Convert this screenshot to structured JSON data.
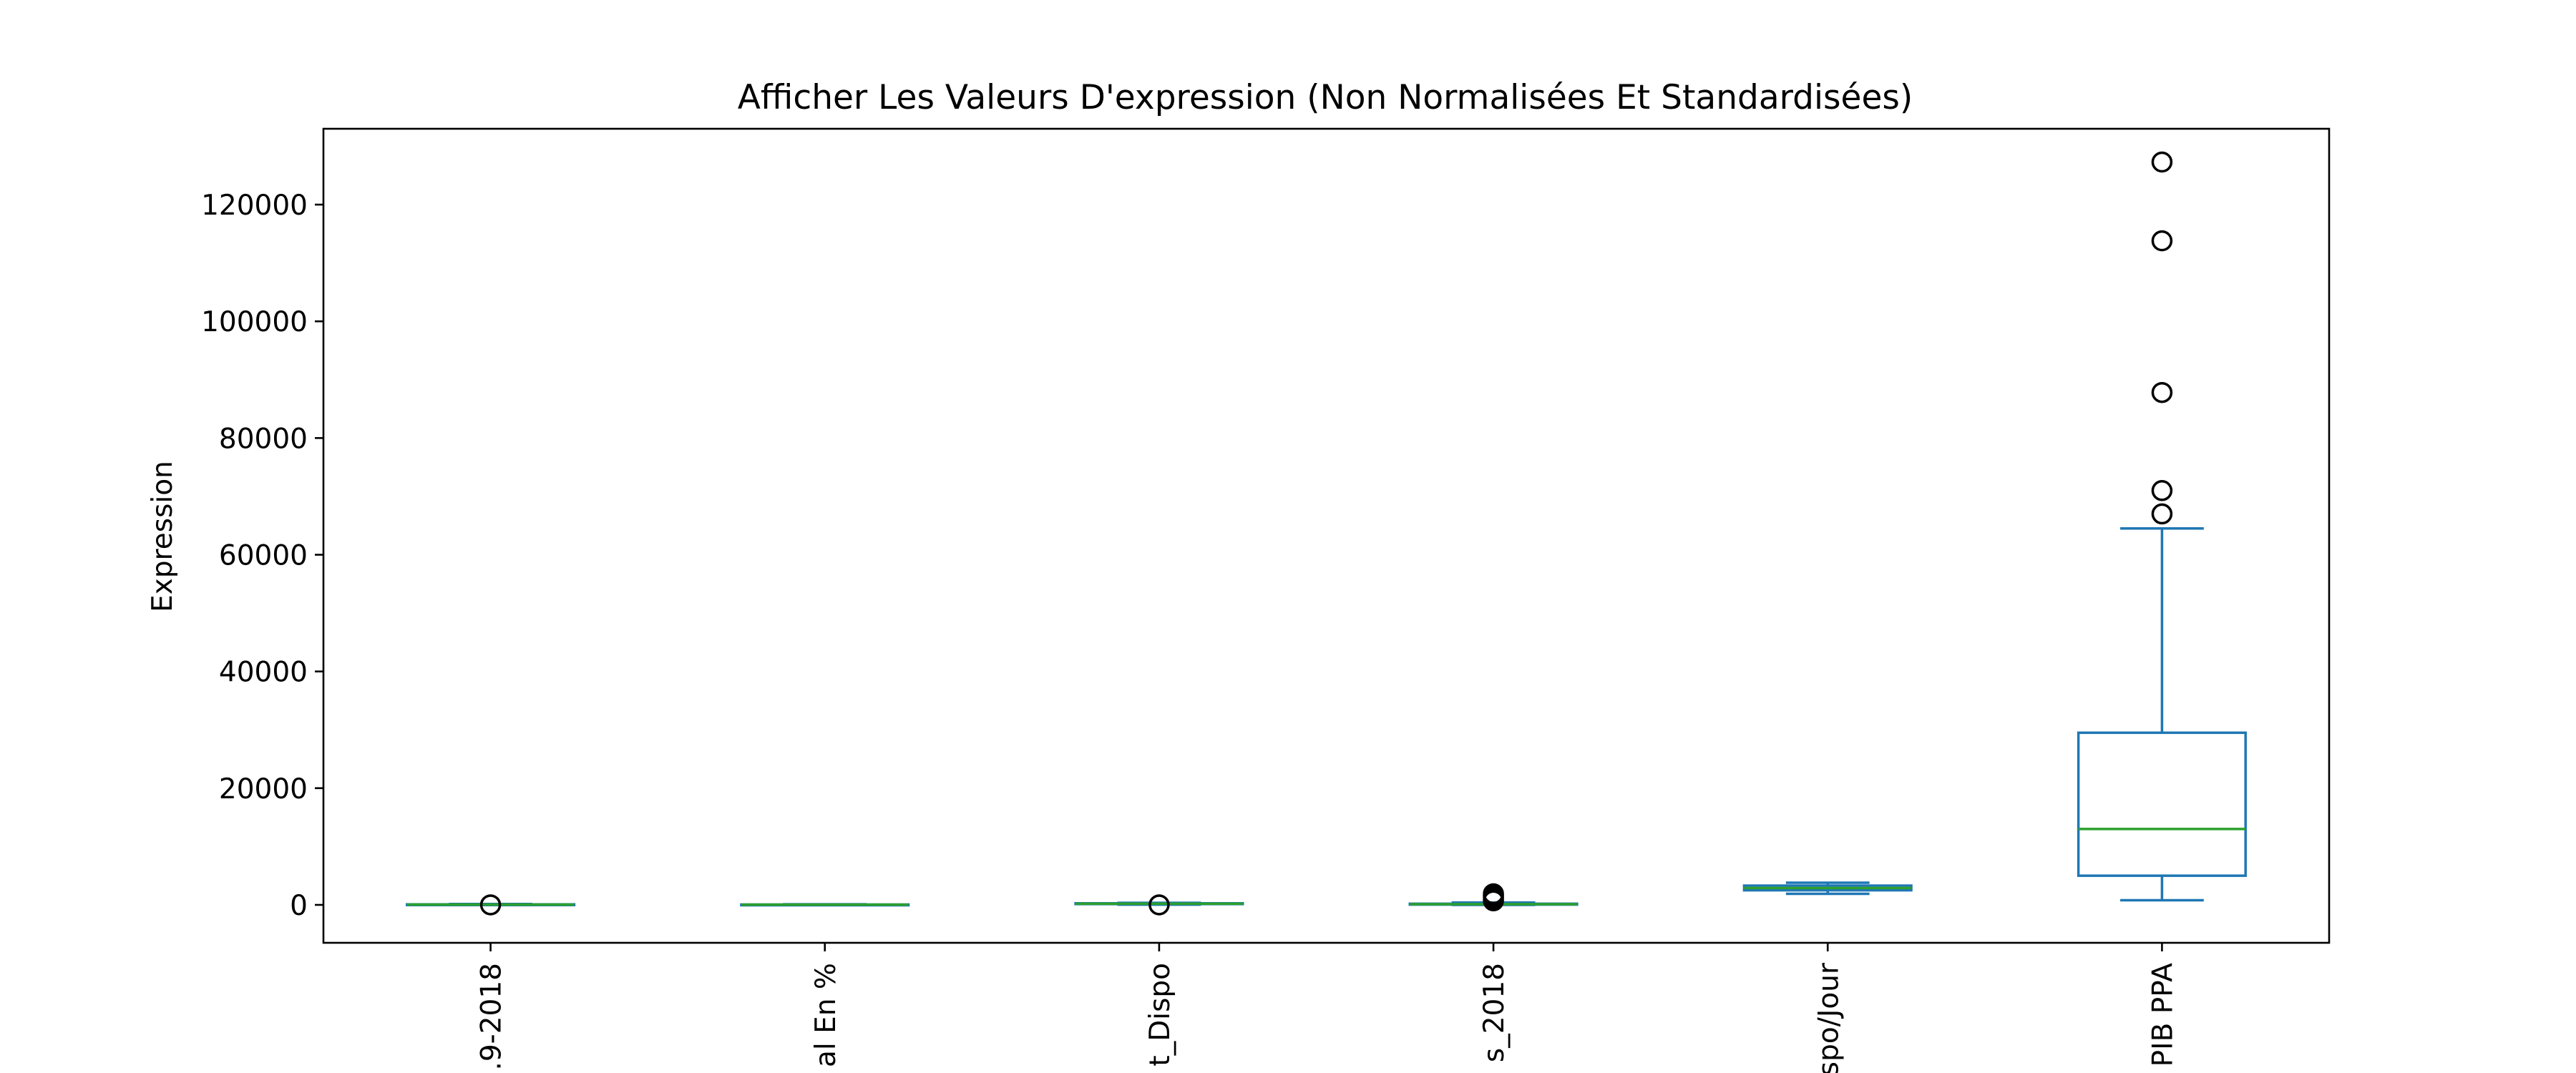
{
  "chart_data": {
    "type": "box",
    "title": "Afficher Les Valeurs D'expression (Non Normalisées Et Standardisées)",
    "xlabel": "",
    "ylabel": "Expression",
    "ylim": [
      -6500,
      133000
    ],
    "yticks": [
      0,
      20000,
      40000,
      60000,
      80000,
      100000,
      120000
    ],
    "ytick_labels": [
      "0",
      "20000",
      "40000",
      "60000",
      "80000",
      "100000",
      "120000"
    ],
    "categories": [
      ".9-2018",
      "al En %",
      "t_Dispo",
      "s_2018",
      "spo/Jour",
      "PIB PPA"
    ],
    "grid": false,
    "colors": {
      "box": "#1f77b4",
      "median": "#2ca02c",
      "flier": "#000000"
    },
    "boxes": [
      {
        "whisker_low": 0,
        "q1": 20,
        "median": 60,
        "q3": 90,
        "whisker_high": 150,
        "fliers": [
          0
        ]
      },
      {
        "whisker_low": 0,
        "q1": 10,
        "median": 40,
        "q3": 60,
        "whisker_high": 100,
        "fliers": []
      },
      {
        "whisker_low": 50,
        "q1": 140,
        "median": 200,
        "q3": 270,
        "whisker_high": 350,
        "fliers": [
          0
        ]
      },
      {
        "whisker_low": 0,
        "q1": 50,
        "median": 120,
        "q3": 200,
        "whisker_high": 400,
        "fliers": [
          700,
          1000,
          1300,
          1600,
          1900
        ]
      },
      {
        "whisker_low": 1900,
        "q1": 2500,
        "median": 2900,
        "q3": 3300,
        "whisker_high": 3800,
        "fliers": []
      },
      {
        "whisker_low": 800,
        "q1": 5000,
        "median": 13000,
        "q3": 29500,
        "whisker_high": 64500,
        "fliers": [
          67000,
          71000,
          87800,
          113800,
          127300
        ]
      }
    ]
  }
}
